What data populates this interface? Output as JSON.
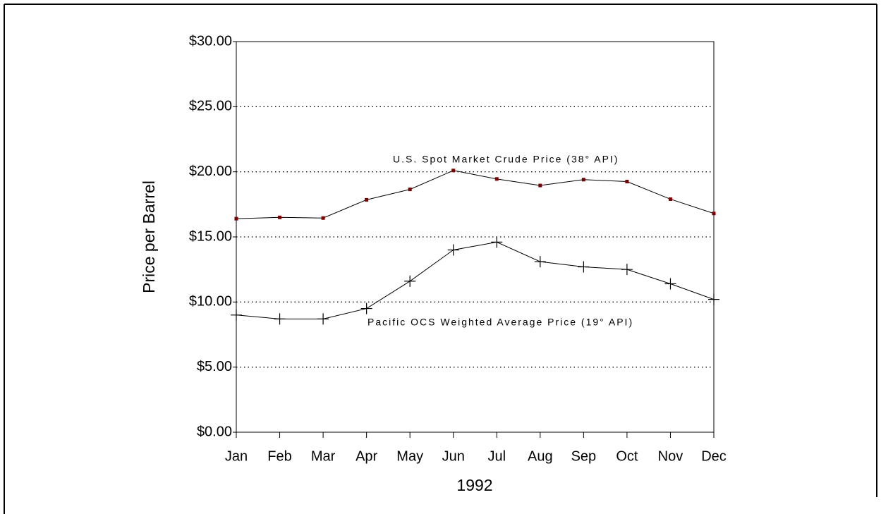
{
  "chart_data": {
    "type": "line",
    "xlabel": "1992",
    "ylabel": "Price per Barrel",
    "categories": [
      "Jan",
      "Feb",
      "Mar",
      "Apr",
      "May",
      "Jun",
      "Jul",
      "Aug",
      "Sep",
      "Oct",
      "Nov",
      "Dec"
    ],
    "series": [
      {
        "name": "U.S. Spot Market Crude Price (38° API)",
        "color": "#000000",
        "marker": "square",
        "marker_color": "#7a0000",
        "values": [
          16.4,
          16.5,
          16.45,
          17.85,
          18.65,
          20.1,
          19.45,
          18.95,
          19.4,
          19.25,
          17.9,
          16.8
        ]
      },
      {
        "name": "Pacific OCS Weighted Average Price (19° API)",
        "color": "#000000",
        "marker": "plus",
        "marker_color": "#000000",
        "values": [
          9.0,
          8.7,
          8.7,
          9.5,
          11.6,
          14.0,
          14.6,
          13.1,
          12.7,
          12.5,
          11.4,
          10.2
        ]
      }
    ],
    "ylim": [
      0,
      30
    ],
    "yticks": [
      {
        "value": 0,
        "label": "$0.00"
      },
      {
        "value": 5,
        "label": "$5.00"
      },
      {
        "value": 10,
        "label": "$10.00"
      },
      {
        "value": 15,
        "label": "$15.00"
      },
      {
        "value": 20,
        "label": "$20.00"
      },
      {
        "value": 25,
        "label": "$25.00"
      },
      {
        "value": 30,
        "label": "$30.00"
      }
    ],
    "grid": true
  }
}
